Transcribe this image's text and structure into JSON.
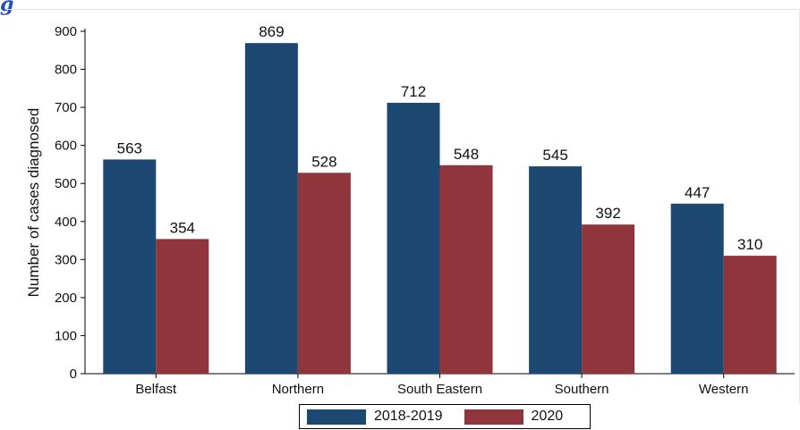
{
  "figure_label": "g",
  "chart_data": {
    "type": "bar",
    "title": "",
    "xlabel": "",
    "ylabel": "Number of cases diagnosed",
    "ylim": [
      0,
      900
    ],
    "yticks": [
      0,
      100,
      200,
      300,
      400,
      500,
      600,
      700,
      800,
      900
    ],
    "categories": [
      "Belfast",
      "Northern",
      "South Eastern",
      "Southern",
      "Western"
    ],
    "series": [
      {
        "name": "2018-2019",
        "color": "#1c4872",
        "values": [
          563,
          869,
          712,
          545,
          447
        ]
      },
      {
        "name": "2020",
        "color": "#90353b",
        "values": [
          354,
          528,
          548,
          392,
          310
        ]
      }
    ],
    "legend_position": "bottom",
    "grid": false
  }
}
